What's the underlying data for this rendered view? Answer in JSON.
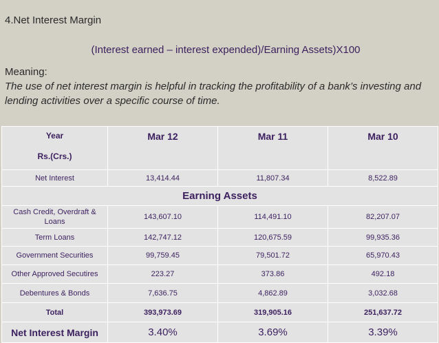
{
  "heading": "4.Net Interest Margin",
  "formula": "(Interest earned – interest expended)/Earning Assets)X100",
  "meaning_label": "Meaning:",
  "meaning_text": "The use of net interest margin is helpful in tracking the profitability of a bank’s investing and lending activities over a specific course of time.",
  "table": {
    "header": {
      "year": "Year",
      "unit": "Rs.(Crs.)",
      "columns": [
        "Mar 12",
        "Mar 11",
        "Mar 10"
      ]
    },
    "net_interest": {
      "label": "Net Interest",
      "values": [
        "13,414.44",
        "11,807.34",
        "8,522.89"
      ]
    },
    "section_title": "Earning Assets",
    "rows": [
      {
        "label": "Cash Credit, Overdraft & Loans",
        "values": [
          "143,607.10",
          "114,491.10",
          "82,207.07"
        ]
      },
      {
        "label": "Term Loans",
        "values": [
          "142,747.12",
          "120,675.59",
          "99,935.36"
        ]
      },
      {
        "label": "Government Securities",
        "values": [
          "99,759.45",
          "79,501.72",
          "65,970.43"
        ]
      },
      {
        "label": "Other Approved Secutires",
        "values": [
          "223.27",
          "373.86",
          "492.18"
        ]
      },
      {
        "label": "Debentures & Bonds",
        "values": [
          "7,636.75",
          "4,862.89",
          "3,032.68"
        ]
      }
    ],
    "total": {
      "label": "Total",
      "values": [
        "393,973.69",
        "319,905.16",
        "251,637.72"
      ]
    },
    "nim": {
      "label": "Net Interest Margin",
      "values": [
        "3.40%",
        "3.69%",
        "3.39%"
      ]
    }
  }
}
